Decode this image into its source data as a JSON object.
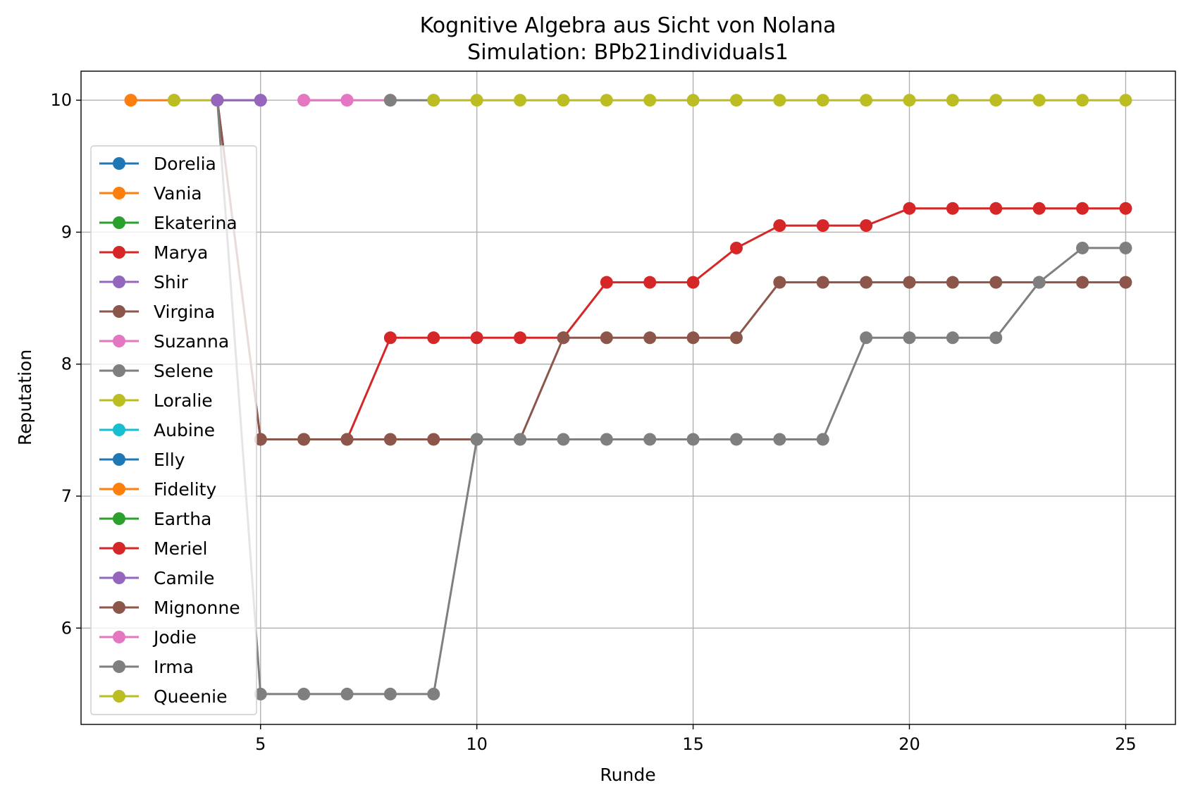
{
  "chart_data": {
    "type": "line",
    "title": "Kognitive Algebra aus Sicht von Nolana",
    "subtitle": "Simulation: BPb21individuals1",
    "xlabel": "Runde",
    "ylabel": "Reputation",
    "xlim": [
      0.85,
      26.15
    ],
    "ylim": [
      5.27,
      10.22
    ],
    "xticks": [
      5,
      10,
      15,
      20,
      25
    ],
    "yticks": [
      6,
      7,
      8,
      9,
      10
    ],
    "grid": true,
    "legend_position": "center-left",
    "series": [
      {
        "name": "Dorelia",
        "color": "#1f77b4",
        "x": [],
        "y": []
      },
      {
        "name": "Vania",
        "color": "#ff7f0e",
        "x": [
          2,
          3
        ],
        "y": [
          10,
          10
        ]
      },
      {
        "name": "Ekaterina",
        "color": "#2ca02c",
        "x": [],
        "y": []
      },
      {
        "name": "Marya",
        "color": "#d62728",
        "x": [
          4,
          5,
          6,
          7,
          8,
          9,
          10,
          11,
          12,
          13,
          14,
          15,
          16,
          17,
          18,
          19,
          20,
          21,
          22,
          23,
          24,
          25
        ],
        "y": [
          10,
          7.43,
          7.43,
          7.43,
          8.2,
          8.2,
          8.2,
          8.2,
          8.2,
          8.62,
          8.62,
          8.62,
          8.88,
          9.05,
          9.05,
          9.05,
          9.18,
          9.18,
          9.18,
          9.18,
          9.18,
          9.18
        ]
      },
      {
        "name": "Shir",
        "color": "#9467bd",
        "x": [
          4,
          5
        ],
        "y": [
          10,
          10
        ]
      },
      {
        "name": "Virgina",
        "color": "#8c564b",
        "x": [
          4,
          5,
          6,
          7,
          8,
          9,
          10,
          11,
          12,
          13,
          14,
          15,
          16,
          17,
          18,
          19,
          20,
          21,
          22,
          23,
          24,
          25
        ],
        "y": [
          10,
          7.43,
          7.43,
          7.43,
          7.43,
          7.43,
          7.43,
          7.43,
          8.2,
          8.2,
          8.2,
          8.2,
          8.2,
          8.62,
          8.62,
          8.62,
          8.62,
          8.62,
          8.62,
          8.62,
          8.62,
          8.62
        ]
      },
      {
        "name": "Suzanna",
        "color": "#e377c2",
        "x": [
          6,
          7,
          8
        ],
        "y": [
          10,
          10,
          10
        ]
      },
      {
        "name": "Selene",
        "color": "#7f7f7f",
        "x": [
          4,
          5,
          6,
          7,
          8,
          9,
          10,
          11,
          12,
          13,
          14,
          15,
          16,
          17,
          18,
          19,
          20,
          21,
          22,
          23,
          24,
          25
        ],
        "y": [
          10,
          5.5,
          5.5,
          5.5,
          5.5,
          5.5,
          7.43,
          7.43,
          7.43,
          7.43,
          7.43,
          7.43,
          7.43,
          7.43,
          7.43,
          8.2,
          8.2,
          8.2,
          8.2,
          8.62,
          8.88,
          8.88
        ]
      },
      {
        "name": "Loralie",
        "color": "#bcbd22",
        "x": [
          3,
          4
        ],
        "y": [
          10,
          10
        ]
      },
      {
        "name": "Aubine",
        "color": "#17becf",
        "x": [],
        "y": []
      },
      {
        "name": "Elly",
        "color": "#1f77b4",
        "x": [],
        "y": []
      },
      {
        "name": "Fidelity",
        "color": "#ff7f0e",
        "x": [
          2
        ],
        "y": [
          10
        ]
      },
      {
        "name": "Eartha",
        "color": "#2ca02c",
        "x": [],
        "y": []
      },
      {
        "name": "Meriel",
        "color": "#d62728",
        "x": [],
        "y": []
      },
      {
        "name": "Camile",
        "color": "#9467bd",
        "x": [
          4,
          5
        ],
        "y": [
          10,
          10
        ]
      },
      {
        "name": "Mignonne",
        "color": "#8c564b",
        "x": [],
        "y": []
      },
      {
        "name": "Jodie",
        "color": "#e377c2",
        "x": [
          6,
          7
        ],
        "y": [
          10,
          10
        ]
      },
      {
        "name": "Irma",
        "color": "#7f7f7f",
        "x": [
          8,
          9
        ],
        "y": [
          10,
          10
        ]
      },
      {
        "name": "Queenie",
        "color": "#bcbd22",
        "x": [
          9,
          10,
          11,
          12,
          13,
          14,
          15,
          16,
          17,
          18,
          19,
          20,
          21,
          22,
          23,
          24,
          25
        ],
        "y": [
          10,
          10,
          10,
          10,
          10,
          10,
          10,
          10,
          10,
          10,
          10,
          10,
          10,
          10,
          10,
          10,
          10
        ]
      }
    ]
  }
}
